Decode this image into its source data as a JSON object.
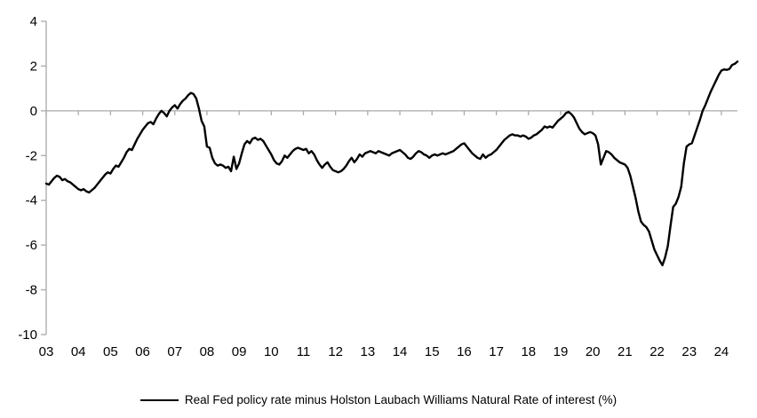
{
  "chart_data": {
    "type": "line",
    "title": "",
    "xlabel": "",
    "ylabel": "",
    "x_range": [
      2003.0,
      2024.5
    ],
    "y_range": [
      -10,
      4
    ],
    "y_ticks": [
      4,
      2,
      0,
      -2,
      -4,
      -6,
      -8,
      -10
    ],
    "x_tick_years": [
      2003,
      2004,
      2005,
      2006,
      2007,
      2008,
      2009,
      2010,
      2011,
      2012,
      2013,
      2014,
      2015,
      2016,
      2017,
      2018,
      2019,
      2020,
      2021,
      2022,
      2023,
      2024
    ],
    "x_tick_labels": [
      "03",
      "04",
      "05",
      "06",
      "07",
      "08",
      "09",
      "10",
      "11",
      "12",
      "13",
      "14",
      "15",
      "16",
      "17",
      "18",
      "19",
      "20",
      "21",
      "22",
      "23",
      "24"
    ],
    "grid": false,
    "zero_axis_line": true,
    "axis_color": "#a9a9a9",
    "text_color": "#000000",
    "legend_position": "bottom-center",
    "series": [
      {
        "name": "Real Fed policy rate minus Holston Laubach Williams Natural Rate of interest (%)",
        "color": "#000000",
        "start_year": 2003.0,
        "step_years": 0.0833333,
        "values": [
          -3.25,
          -3.3,
          -3.15,
          -3.0,
          -2.9,
          -2.95,
          -3.1,
          -3.05,
          -3.15,
          -3.2,
          -3.3,
          -3.4,
          -3.5,
          -3.55,
          -3.5,
          -3.6,
          -3.65,
          -3.55,
          -3.45,
          -3.3,
          -3.15,
          -3.0,
          -2.85,
          -2.75,
          -2.8,
          -2.6,
          -2.45,
          -2.5,
          -2.3,
          -2.1,
          -1.85,
          -1.7,
          -1.75,
          -1.5,
          -1.25,
          -1.05,
          -0.85,
          -0.7,
          -0.55,
          -0.5,
          -0.6,
          -0.35,
          -0.15,
          0.0,
          -0.1,
          -0.25,
          0.0,
          0.15,
          0.25,
          0.1,
          0.3,
          0.45,
          0.55,
          0.7,
          0.8,
          0.75,
          0.55,
          0.1,
          -0.45,
          -0.7,
          -1.6,
          -1.65,
          -2.1,
          -2.35,
          -2.45,
          -2.4,
          -2.45,
          -2.55,
          -2.5,
          -2.7,
          -2.05,
          -2.6,
          -2.35,
          -1.9,
          -1.5,
          -1.35,
          -1.45,
          -1.25,
          -1.2,
          -1.3,
          -1.25,
          -1.35,
          -1.55,
          -1.75,
          -1.95,
          -2.2,
          -2.35,
          -2.4,
          -2.25,
          -2.0,
          -2.1,
          -1.95,
          -1.8,
          -1.7,
          -1.65,
          -1.7,
          -1.75,
          -1.7,
          -1.9,
          -1.8,
          -1.95,
          -2.2,
          -2.4,
          -2.55,
          -2.4,
          -2.3,
          -2.5,
          -2.65,
          -2.7,
          -2.75,
          -2.7,
          -2.6,
          -2.45,
          -2.25,
          -2.1,
          -2.3,
          -2.15,
          -1.95,
          -2.05,
          -1.9,
          -1.85,
          -1.8,
          -1.85,
          -1.9,
          -1.8,
          -1.85,
          -1.9,
          -1.95,
          -2.0,
          -1.9,
          -1.85,
          -1.8,
          -1.75,
          -1.85,
          -1.95,
          -2.1,
          -2.15,
          -2.05,
          -1.9,
          -1.8,
          -1.85,
          -1.95,
          -2.0,
          -2.1,
          -2.0,
          -1.95,
          -2.0,
          -1.95,
          -1.9,
          -1.95,
          -1.9,
          -1.85,
          -1.8,
          -1.7,
          -1.6,
          -1.5,
          -1.45,
          -1.6,
          -1.75,
          -1.9,
          -2.0,
          -2.1,
          -2.15,
          -1.95,
          -2.1,
          -2.0,
          -1.95,
          -1.85,
          -1.75,
          -1.6,
          -1.45,
          -1.3,
          -1.2,
          -1.1,
          -1.05,
          -1.1,
          -1.1,
          -1.15,
          -1.1,
          -1.15,
          -1.25,
          -1.2,
          -1.1,
          -1.05,
          -0.95,
          -0.85,
          -0.7,
          -0.75,
          -0.7,
          -0.75,
          -0.6,
          -0.45,
          -0.35,
          -0.25,
          -0.1,
          -0.05,
          -0.15,
          -0.3,
          -0.55,
          -0.8,
          -0.95,
          -1.05,
          -1.0,
          -0.95,
          -1.0,
          -1.1,
          -1.5,
          -2.4,
          -2.1,
          -1.8,
          -1.85,
          -1.95,
          -2.1,
          -2.2,
          -2.3,
          -2.35,
          -2.4,
          -2.55,
          -2.9,
          -3.4,
          -3.9,
          -4.5,
          -4.95,
          -5.1,
          -5.2,
          -5.4,
          -5.8,
          -6.2,
          -6.45,
          -6.7,
          -6.9,
          -6.55,
          -6.05,
          -5.15,
          -4.3,
          -4.15,
          -3.85,
          -3.4,
          -2.35,
          -1.6,
          -1.5,
          -1.45,
          -1.1,
          -0.75,
          -0.4,
          0.0,
          0.25,
          0.55,
          0.85,
          1.1,
          1.35,
          1.6,
          1.8,
          1.85,
          1.83,
          1.87,
          2.05,
          2.1,
          2.2
        ]
      }
    ]
  },
  "legend": {
    "label": "Real Fed policy rate minus Holston Laubach Williams Natural Rate of interest (%)"
  }
}
